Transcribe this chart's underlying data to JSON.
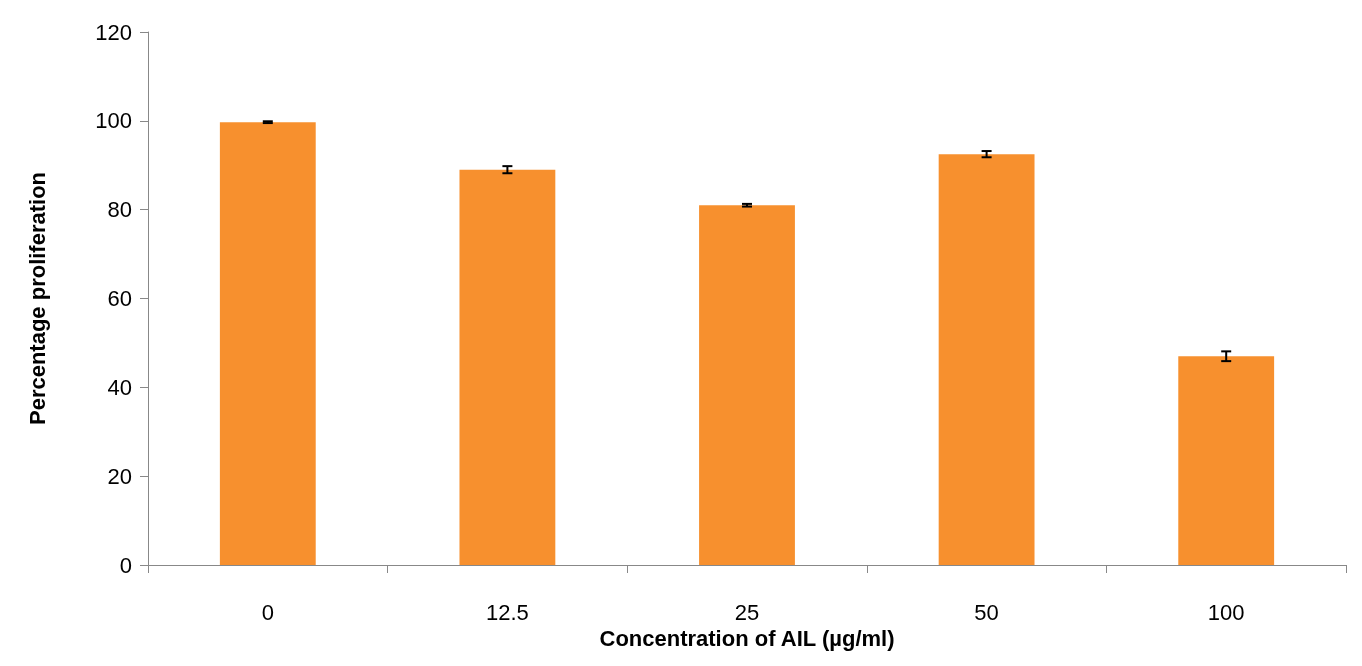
{
  "chart_data": {
    "type": "bar",
    "xlabel": "Concentration of AIL (µg/ml)",
    "ylabel": "Percentage proliferation",
    "categories": [
      "0",
      "12.5",
      "25",
      "50",
      "100"
    ],
    "values": [
      99.7,
      89,
      81,
      92.5,
      47
    ],
    "errors": [
      0.2,
      0.8,
      0.3,
      0.7,
      1.1
    ],
    "color": "#f7902e",
    "ylim": [
      0,
      120
    ],
    "yticks": [
      0,
      20,
      40,
      60,
      80,
      100,
      120
    ],
    "grid": false
  }
}
